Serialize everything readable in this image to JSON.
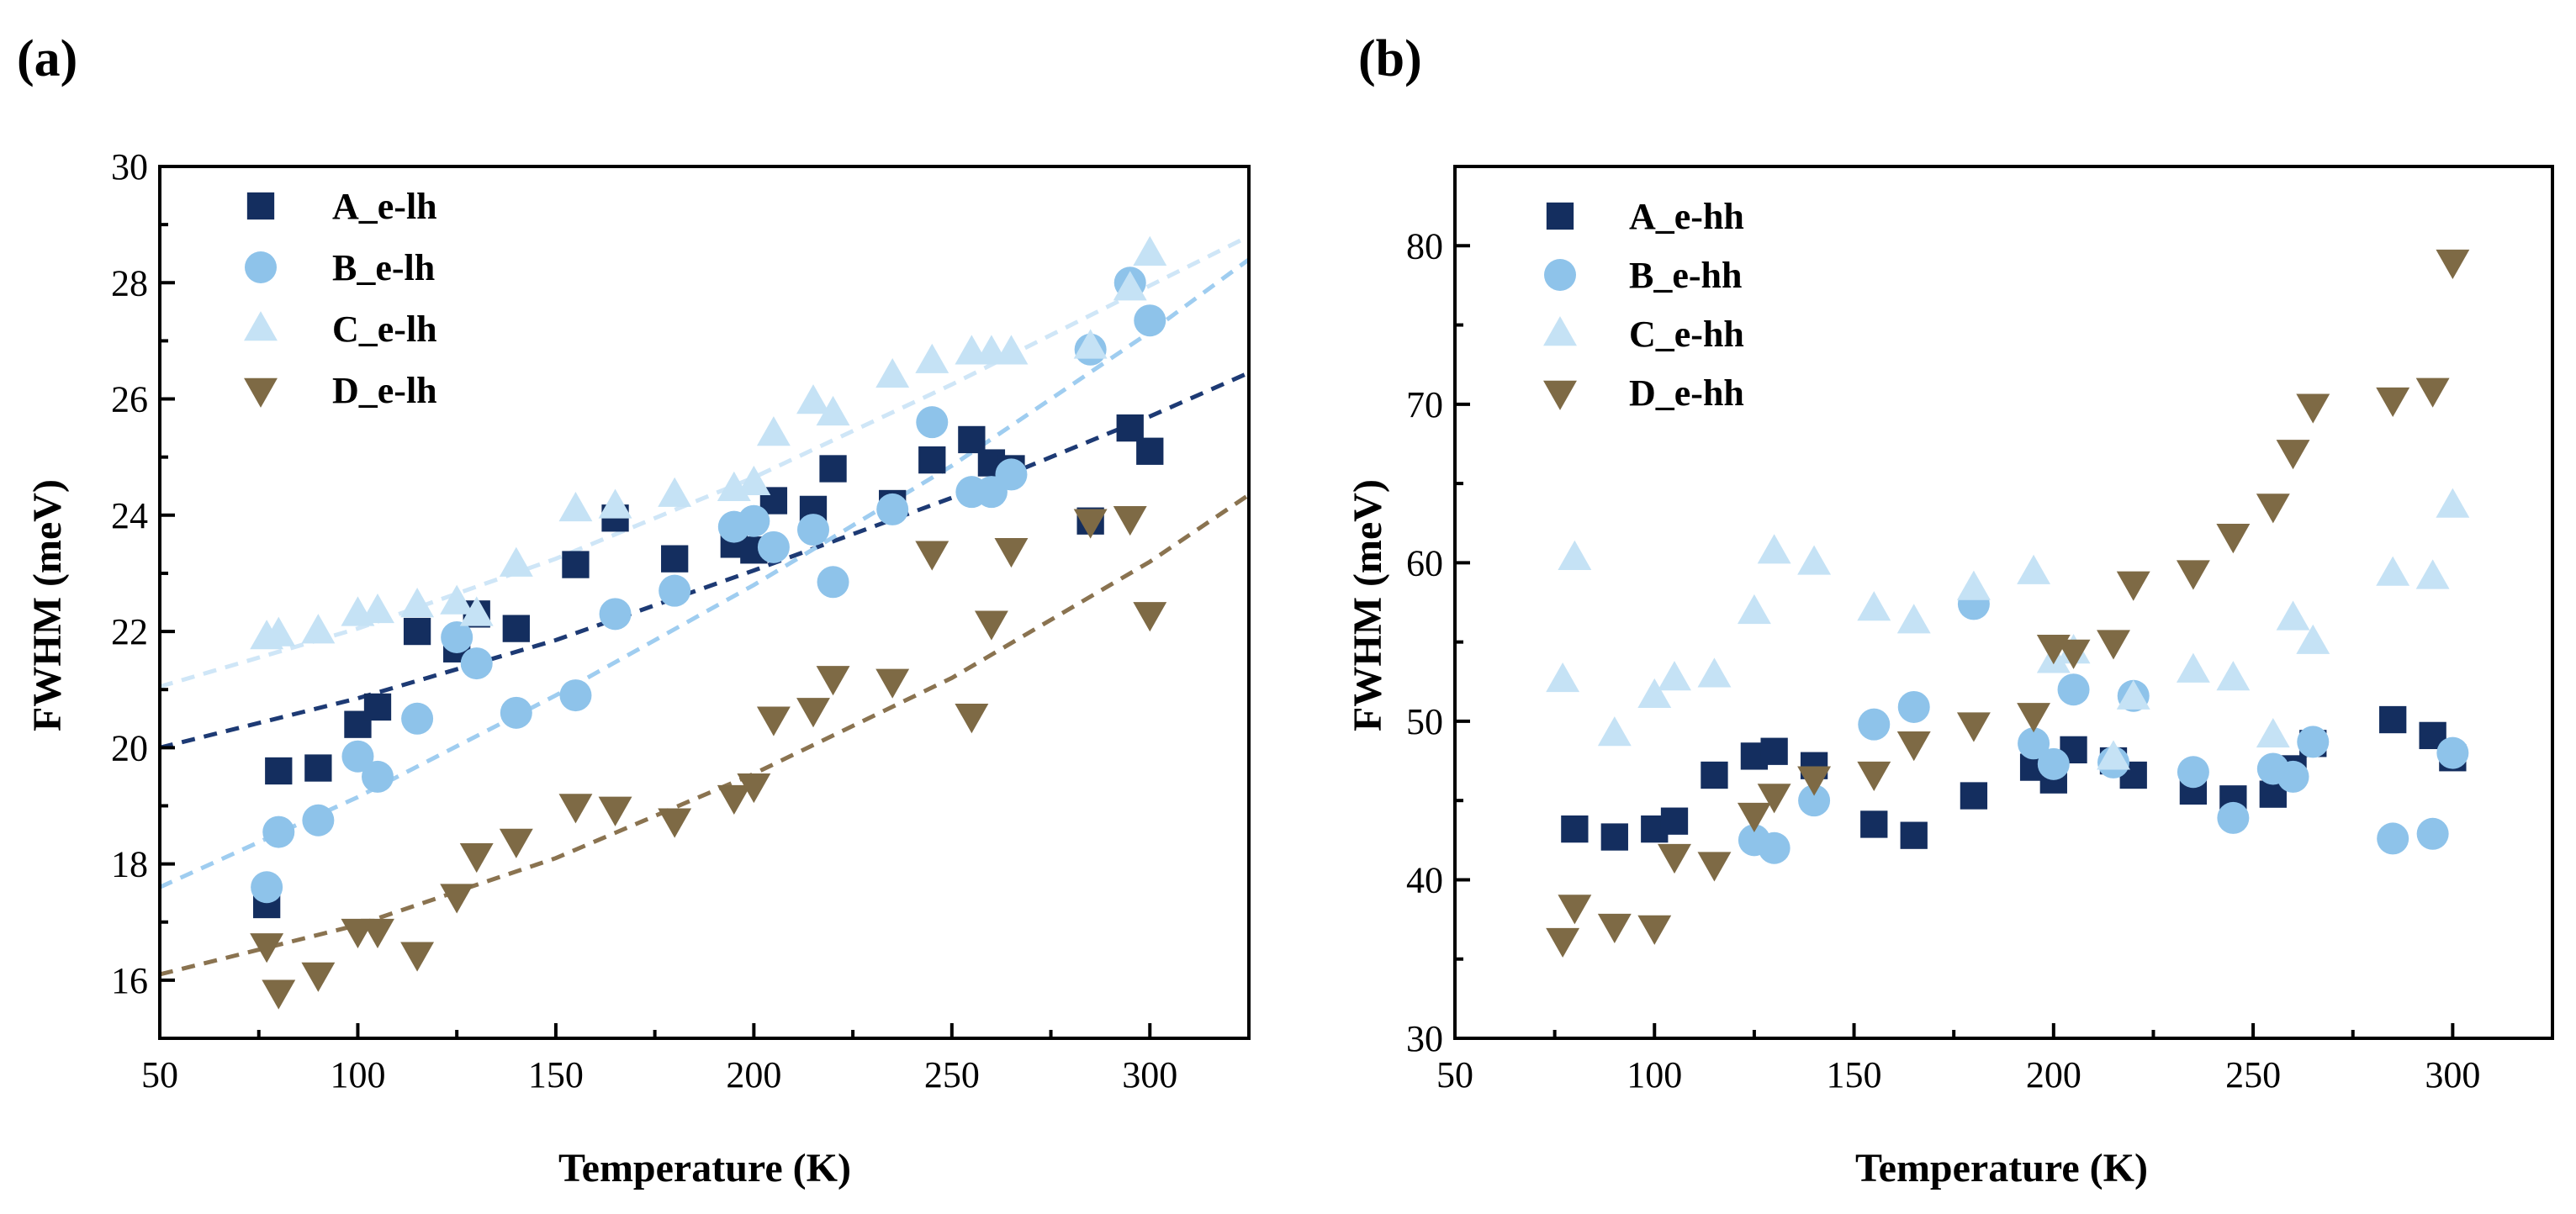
{
  "colors": {
    "A": "#142e5f",
    "B": "#8ec3ea",
    "C": "#c5e2f5",
    "D": "#7e6a45",
    "fitA": "#1d3a74",
    "fitB": "#9fcdf0",
    "fitC": "#cfe6f7",
    "fitD": "#8a7350"
  },
  "chart_data": [
    {
      "type": "scatter",
      "panel": "(a)",
      "xlabel": "Temperature (K)",
      "ylabel": "FWHM (meV)",
      "xlim": [
        50,
        325
      ],
      "ylim": [
        15,
        30
      ],
      "xticks": [
        50,
        100,
        150,
        200,
        250,
        300
      ],
      "yticks": [
        16,
        18,
        20,
        22,
        24,
        26,
        28,
        30
      ],
      "legend_position": "top-left",
      "series": [
        {
          "name": "A_e-lh",
          "key": "A",
          "marker": "square",
          "x": [
            77,
            80,
            90,
            100,
            105,
            115,
            125,
            130,
            140,
            155,
            165,
            180,
            195,
            200,
            205,
            215,
            220,
            235,
            245,
            255,
            260,
            265,
            285,
            295,
            300
          ],
          "y": [
            17.3,
            19.6,
            19.65,
            20.4,
            20.7,
            22.0,
            21.7,
            22.3,
            22.05,
            23.15,
            23.95,
            23.25,
            23.5,
            23.4,
            24.25,
            24.1,
            24.8,
            24.2,
            24.95,
            25.3,
            24.9,
            24.8,
            23.9,
            25.5,
            25.1
          ]
        },
        {
          "name": "B_e-lh",
          "key": "B",
          "marker": "circle",
          "x": [
            77,
            80,
            90,
            100,
            105,
            115,
            125,
            130,
            140,
            155,
            165,
            180,
            195,
            200,
            205,
            215,
            220,
            235,
            245,
            255,
            260,
            265,
            285,
            295,
            300
          ],
          "y": [
            17.6,
            18.55,
            18.75,
            19.85,
            19.5,
            20.5,
            21.9,
            21.45,
            20.6,
            20.9,
            22.3,
            22.7,
            23.8,
            23.9,
            23.45,
            23.75,
            22.85,
            24.1,
            25.6,
            24.4,
            24.4,
            24.7,
            26.85,
            28.0,
            27.35
          ]
        },
        {
          "name": "C_e-lh",
          "key": "C",
          "marker": "triangle-up",
          "x": [
            77,
            80,
            90,
            100,
            105,
            115,
            125,
            130,
            140,
            155,
            165,
            180,
            195,
            200,
            205,
            215,
            220,
            235,
            245,
            255,
            260,
            265,
            285,
            295,
            300
          ],
          "y": [
            21.9,
            21.95,
            22.0,
            22.3,
            22.35,
            22.45,
            22.5,
            22.3,
            23.15,
            24.1,
            24.15,
            24.35,
            24.45,
            24.55,
            25.4,
            25.95,
            25.75,
            26.4,
            26.65,
            26.8,
            26.8,
            26.8,
            26.9,
            27.9,
            28.5
          ]
        },
        {
          "name": "D_e-lh",
          "key": "D",
          "marker": "triangle-down",
          "x": [
            77,
            80,
            90,
            100,
            105,
            115,
            125,
            130,
            140,
            155,
            165,
            180,
            195,
            200,
            205,
            215,
            220,
            235,
            245,
            255,
            260,
            265,
            285,
            295,
            300
          ],
          "y": [
            16.6,
            15.8,
            16.1,
            16.85,
            16.85,
            16.45,
            17.45,
            18.15,
            18.4,
            19.0,
            18.95,
            18.75,
            19.15,
            19.35,
            20.5,
            20.65,
            21.2,
            21.15,
            23.35,
            20.55,
            22.15,
            23.4,
            23.9,
            23.95,
            22.3
          ]
        }
      ],
      "fit_lines": [
        {
          "key": "A",
          "x": [
            50,
            100,
            150,
            200,
            250,
            300,
            325
          ],
          "y": [
            20.0,
            20.85,
            21.85,
            23.05,
            24.3,
            25.7,
            26.45
          ]
        },
        {
          "key": "B",
          "x": [
            50,
            100,
            150,
            200,
            250,
            300,
            325
          ],
          "y": [
            17.6,
            19.15,
            20.9,
            22.8,
            24.85,
            27.15,
            28.4
          ]
        },
        {
          "key": "C",
          "x": [
            50,
            100,
            150,
            200,
            250,
            300,
            325
          ],
          "y": [
            21.05,
            22.05,
            23.25,
            24.65,
            26.25,
            27.95,
            28.8
          ]
        },
        {
          "key": "D",
          "x": [
            50,
            100,
            150,
            200,
            250,
            300,
            325
          ],
          "y": [
            16.1,
            16.95,
            18.1,
            19.55,
            21.2,
            23.2,
            24.35
          ]
        }
      ]
    },
    {
      "type": "scatter",
      "panel": "(b)",
      "xlabel": "Temperature (K)",
      "ylabel": "FWHM (meV)",
      "xlim": [
        50,
        325
      ],
      "ylim": [
        30,
        85
      ],
      "xticks": [
        50,
        100,
        150,
        200,
        250,
        300
      ],
      "yticks": [
        30,
        40,
        50,
        60,
        70,
        80
      ],
      "legend_position": "top-left",
      "series": [
        {
          "name": "A_e-hh",
          "key": "A",
          "marker": "square",
          "x": [
            80,
            90,
            100,
            105,
            115,
            125,
            130,
            140,
            155,
            165,
            180,
            195,
            200,
            205,
            215,
            220,
            235,
            245,
            255,
            260,
            265,
            285,
            295,
            300
          ],
          "y": [
            43.2,
            42.7,
            43.2,
            43.7,
            46.6,
            47.8,
            48.1,
            47.2,
            43.5,
            42.8,
            45.3,
            47.1,
            46.3,
            48.2,
            47.5,
            46.6,
            45.6,
            45.1,
            45.4,
            47.0,
            48.6,
            50.1,
            49.1,
            47.7
          ]
        },
        {
          "name": "B_e-hh",
          "key": "B",
          "marker": "circle",
          "x": [
            125,
            130,
            140,
            155,
            165,
            180,
            195,
            200,
            205,
            215,
            220,
            235,
            245,
            255,
            260,
            265,
            285,
            295,
            300
          ],
          "y": [
            42.5,
            42.0,
            45.0,
            49.8,
            50.9,
            57.4,
            48.6,
            47.3,
            52.0,
            47.4,
            51.6,
            46.8,
            43.9,
            47.0,
            46.5,
            48.7,
            42.6,
            42.9,
            48.0
          ]
        },
        {
          "name": "C_e-hh",
          "key": "C",
          "marker": "triangle-up",
          "x": [
            77,
            80,
            90,
            100,
            105,
            115,
            125,
            130,
            140,
            155,
            165,
            180,
            195,
            200,
            205,
            215,
            220,
            235,
            245,
            255,
            260,
            265,
            285,
            295,
            300
          ],
          "y": [
            52.6,
            60.3,
            49.2,
            51.6,
            52.7,
            52.9,
            56.9,
            60.7,
            60.0,
            57.1,
            56.3,
            58.4,
            59.4,
            53.8,
            54.4,
            47.7,
            51.5,
            53.2,
            52.7,
            49.1,
            56.5,
            55.0,
            59.3,
            59.1,
            63.6
          ]
        },
        {
          "name": "D_e-hh",
          "key": "D",
          "marker": "triangle-down",
          "x": [
            77,
            80,
            90,
            100,
            105,
            115,
            125,
            130,
            140,
            155,
            165,
            180,
            195,
            200,
            205,
            215,
            220,
            235,
            245,
            255,
            260,
            265,
            285,
            295,
            300
          ],
          "y": [
            36.2,
            38.3,
            37.1,
            37.0,
            41.5,
            41.0,
            44.1,
            45.3,
            46.4,
            46.7,
            48.6,
            49.8,
            50.4,
            54.7,
            54.4,
            55.0,
            58.7,
            59.4,
            61.7,
            63.6,
            67.0,
            69.9,
            70.3,
            70.9,
            79.0
          ]
        }
      ]
    }
  ]
}
